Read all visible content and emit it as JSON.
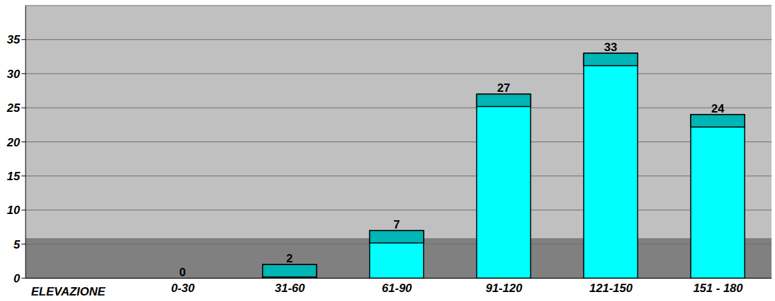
{
  "chart_data": {
    "type": "bar",
    "x_label": "ELEVAZIONE",
    "categories": [
      "0-30",
      "31-60",
      "61-90",
      "91-120",
      "121-150",
      "151 - 180"
    ],
    "values": [
      0,
      2,
      7,
      27,
      33,
      24
    ],
    "color": "#00ffff",
    "ylim": [
      0,
      40
    ],
    "yticks": [
      0,
      5,
      10,
      15,
      20,
      25,
      30,
      35
    ],
    "grid": true,
    "data_labels": true
  }
}
